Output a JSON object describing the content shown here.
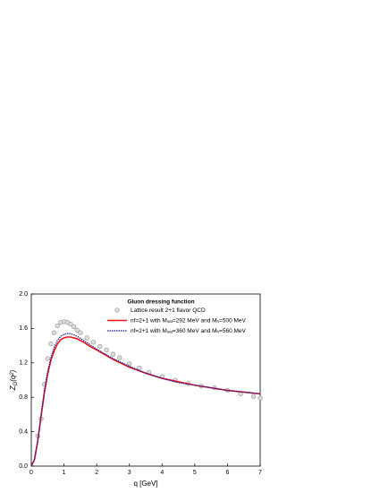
{
  "chart_data": {
    "type": "line",
    "legend_title": "Gluon dressing function",
    "xlabel": "q [GeV]",
    "ylabel": [
      "Z",
      "G",
      "(q",
      "2",
      ")"
    ],
    "xlim": [
      0,
      7
    ],
    "xticks": [
      0,
      1,
      2,
      3,
      4,
      5,
      6,
      7
    ],
    "ylim": [
      0,
      2
    ],
    "yticks": [
      {
        "value": 0,
        "label": "0.0"
      },
      0.4,
      0.8,
      1.2,
      1.6,
      {
        "value": 2,
        "label": "2.0"
      }
    ],
    "legend": "upper right",
    "series": [
      {
        "name": [
          "Lattice result 2+1 flavor QCD"
        ],
        "kind": "scatter",
        "color": "#999999",
        "x": [
          0.2,
          0.3,
          0.4,
          0.5,
          0.6,
          0.7,
          0.8,
          0.9,
          1.0,
          1.1,
          1.2,
          1.3,
          1.4,
          1.5,
          1.7,
          1.9,
          2.1,
          2.3,
          2.5,
          2.7,
          3.0,
          3.3,
          3.6,
          4.0,
          4.4,
          4.8,
          5.2,
          5.6,
          6.0,
          6.4,
          6.8,
          7.0
        ],
        "values": [
          0.35,
          0.55,
          0.95,
          1.25,
          1.42,
          1.55,
          1.63,
          1.67,
          1.68,
          1.67,
          1.65,
          1.62,
          1.58,
          1.55,
          1.49,
          1.44,
          1.39,
          1.35,
          1.3,
          1.26,
          1.19,
          1.14,
          1.09,
          1.04,
          1.0,
          0.96,
          0.93,
          0.91,
          0.88,
          0.84,
          0.81,
          0.79
        ]
      },
      {
        "name": [
          "nf=2+1 with M",
          "sat",
          "=292 MeV and M",
          "h",
          "=500 MeV"
        ],
        "kind": "solid",
        "color": "#ee1111",
        "x": [
          0,
          0.1,
          0.2,
          0.3,
          0.4,
          0.5,
          0.6,
          0.7,
          0.8,
          0.9,
          1.0,
          1.1,
          1.2,
          1.4,
          1.6,
          1.8,
          2.0,
          2.5,
          3,
          3.5,
          4,
          4.5,
          5,
          5.5,
          6,
          6.5,
          7
        ],
        "values": [
          0,
          0.08,
          0.3,
          0.58,
          0.85,
          1.07,
          1.23,
          1.34,
          1.42,
          1.47,
          1.49,
          1.5,
          1.5,
          1.48,
          1.44,
          1.39,
          1.35,
          1.24,
          1.15,
          1.08,
          1.02,
          0.98,
          0.94,
          0.91,
          0.88,
          0.86,
          0.84
        ]
      },
      {
        "name": [
          "nf=2+1 with M",
          "sat",
          "=360 MeV and M",
          "h",
          "=560 MeV"
        ],
        "kind": "dotted",
        "color": "#1a1aaa",
        "x": [
          0,
          0.1,
          0.2,
          0.3,
          0.4,
          0.5,
          0.6,
          0.7,
          0.8,
          0.9,
          1.0,
          1.1,
          1.2,
          1.4,
          1.6,
          1.8,
          2.0,
          2.5,
          3,
          3.5,
          4,
          4.5,
          5,
          5.5,
          6,
          6.5,
          7
        ],
        "values": [
          0,
          0.08,
          0.3,
          0.6,
          0.88,
          1.1,
          1.26,
          1.38,
          1.46,
          1.51,
          1.53,
          1.54,
          1.54,
          1.51,
          1.46,
          1.41,
          1.36,
          1.25,
          1.16,
          1.08,
          1.02,
          0.97,
          0.94,
          0.91,
          0.88,
          0.86,
          0.84
        ]
      }
    ]
  }
}
